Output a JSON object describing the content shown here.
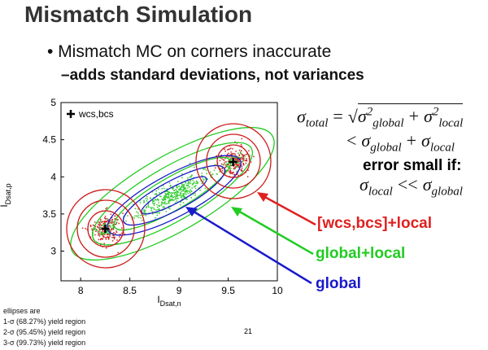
{
  "header": {
    "title": "Mismatch Simulation"
  },
  "bullets": [
    "Mismatch MC on corners inaccurate",
    "adds standard deviations, not variances"
  ],
  "chart_data": {
    "type": "scatter",
    "x_label": "I",
    "x_label_sub": "Dsat,n",
    "y_label": "I",
    "y_label_sub": "Dsat,p",
    "xlim": [
      7.8,
      10
    ],
    "ylim": [
      2.6,
      5
    ],
    "xticks": [
      8,
      8.5,
      9,
      9.5,
      10
    ],
    "yticks": [
      3,
      3.5,
      4,
      4.5,
      5
    ],
    "series": [
      {
        "name": "wcs,bcs",
        "color": "#000000",
        "x": [
          8.25,
          9.55
        ],
        "values": [
          3.3,
          4.2
        ]
      }
    ],
    "legend": "upper left"
  },
  "formula": {
    "line1": [
      "σ",
      "total",
      "=",
      "σ",
      "2",
      "global",
      "+",
      "σ",
      "2",
      "local"
    ],
    "line2": [
      "<",
      "σ",
      "global",
      "+",
      "σ",
      "local"
    ],
    "line3": "error small if:",
    "line4": [
      "σ",
      "local",
      "<<",
      "σ",
      "global"
    ]
  },
  "labels": [
    "[wcs,bcs]+local",
    "global+local",
    "global"
  ],
  "footer": {
    "notes": [
      "ellipses are",
      "1-σ (68.27%) yield region",
      "2-σ (95.45%) yield region",
      "3-σ (99.73%) yield region"
    ],
    "page": "21"
  }
}
